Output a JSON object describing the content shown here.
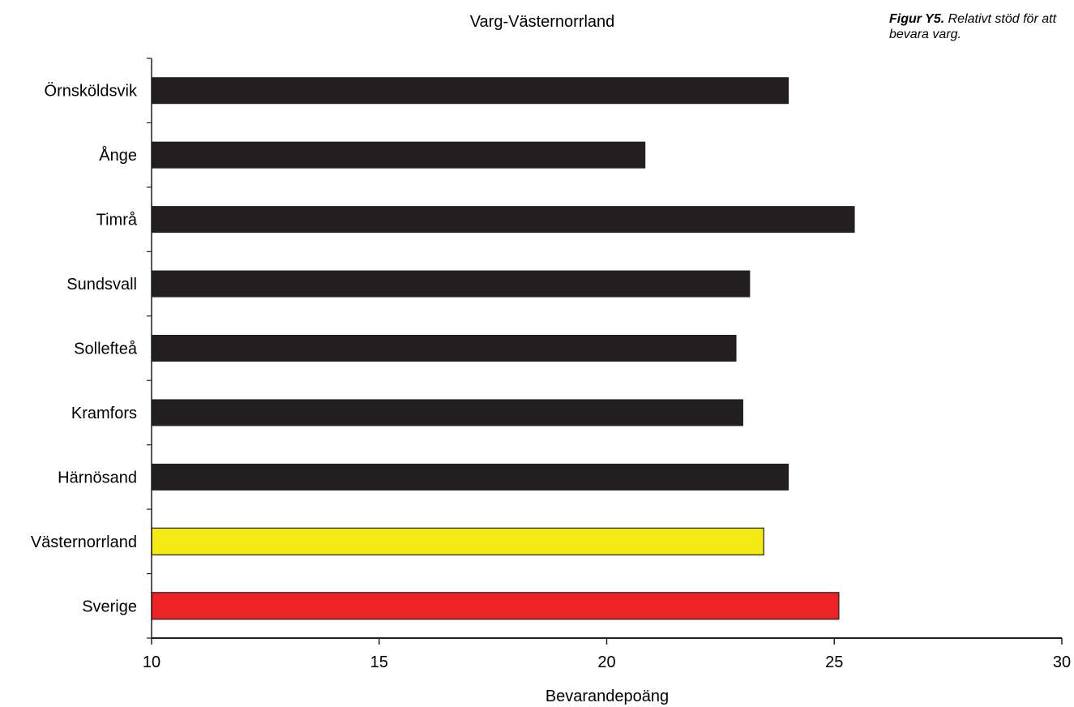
{
  "caption": {
    "label": "Figur Y5.",
    "text": "Relativt stöd för att bevara varg."
  },
  "chart_data": {
    "type": "bar",
    "orientation": "horizontal",
    "title": "Varg-Västernorrland",
    "xlabel": "Bevarandepoäng",
    "ylabel": "",
    "xlim": [
      10,
      30
    ],
    "xticks": [
      10,
      15,
      20,
      25,
      30
    ],
    "grid": false,
    "categories": [
      "Örnsköldsvik",
      "Ånge",
      "Timrå",
      "Sundsvall",
      "Sollefteå",
      "Kramfors",
      "Härnösand",
      "Västernorrland",
      "Sverige"
    ],
    "values": [
      24.0,
      20.85,
      25.45,
      23.15,
      22.85,
      23.0,
      24.0,
      23.45,
      25.1
    ],
    "colors": [
      "#231f20",
      "#231f20",
      "#231f20",
      "#231f20",
      "#231f20",
      "#231f20",
      "#231f20",
      "#f5ea14",
      "#ed2224"
    ]
  }
}
